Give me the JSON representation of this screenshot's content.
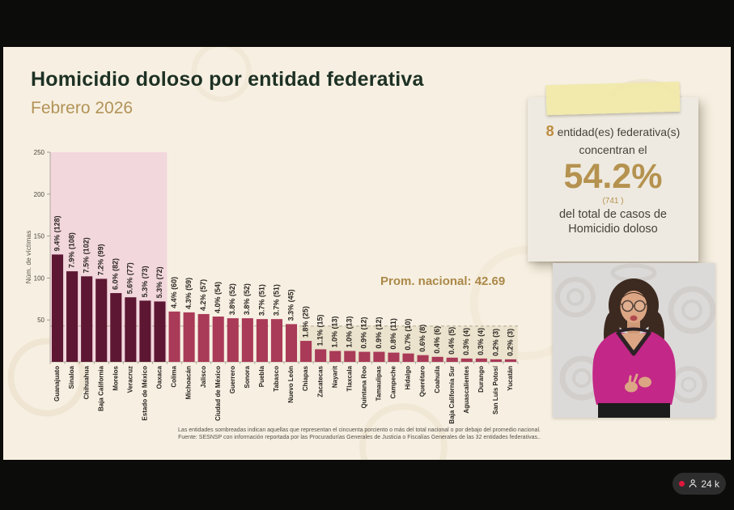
{
  "slide": {
    "title": "Homicidio doloso por entidad federativa",
    "subtitle": "Febrero 2026",
    "average_label": "Prom. nacional: 42.69",
    "footer_line1": "Las entidades sombreadas indican aquellas que representan el cincuenta porciento o más del total nacional o por debajo del promedio nacional.",
    "footer_line2": "Fuente: SESNSP con información reportada por las Procuradurías Generales de Justicia o Fiscalías Generales de las 32 entidades federativas..",
    "callout": {
      "count": "8",
      "line1_rest": " entidad(es) federativa(s)",
      "line2": "concentran el",
      "percent": "54.2%",
      "cases": "(741 )",
      "line3": "del total de casos de",
      "line4": "Homicidio doloso"
    }
  },
  "viewer_badge": {
    "count": "24 k"
  },
  "chart_data": {
    "type": "bar",
    "title": "Homicidio doloso por entidad federativa — Febrero 2026",
    "xlabel": "",
    "ylabel": "Núm. de víctimas",
    "ylim": [
      0,
      250
    ],
    "yticks": [
      50,
      100,
      150,
      200,
      250
    ],
    "grid": false,
    "national_average": 42.69,
    "national_average_label": "Prom. nacional: 42.69",
    "shaded_top_entities": 8,
    "below_average_from_index": 17,
    "categories": [
      "Guanajuato",
      "Sinaloa",
      "Chihuahua",
      "Baja California",
      "Morelos",
      "Veracruz",
      "Estado de México",
      "Oaxaca",
      "Colima",
      "Michoacán",
      "Jalisco",
      "Ciudad de México",
      "Guerrero",
      "Sonora",
      "Puebla",
      "Tabasco",
      "Nuevo León",
      "Chiapas",
      "Zacatecas",
      "Nayarit",
      "Tlaxcala",
      "Quintana Roo",
      "Tamaulipas",
      "Campeche",
      "Hidalgo",
      "Querétaro",
      "Coahuila",
      "Baja California Sur",
      "Aguascalientes",
      "Durango",
      "San Luis Potosí",
      "Yucatán"
    ],
    "values": [
      128,
      108,
      102,
      99,
      82,
      77,
      73,
      72,
      60,
      59,
      57,
      54,
      52,
      52,
      51,
      51,
      45,
      25,
      15,
      13,
      13,
      12,
      12,
      11,
      10,
      8,
      6,
      5,
      4,
      4,
      3,
      3
    ],
    "percent_labels": [
      "9.4%",
      "7.9%",
      "7.5%",
      "7.2%",
      "6.0%",
      "5.6%",
      "5.3%",
      "5.3%",
      "4.4%",
      "4.3%",
      "4.2%",
      "4.0%",
      "3.8%",
      "3.8%",
      "3.7%",
      "3.7%",
      "3.3%",
      "1.8%",
      "1.1%",
      "1.0%",
      "1.0%",
      "0.9%",
      "0.9%",
      "0.8%",
      "0.7%",
      "0.6%",
      "0.4%",
      "0.4%",
      "0.3%",
      "0.3%",
      "0.2%",
      "0.2%"
    ],
    "legend": "sombreado rosa = entidades que concentran 50% o más del total; sombreado beige = por debajo del promedio nacional",
    "colors": {
      "bar_top_share": "#5d1732",
      "bar_regular": "#a93a58",
      "band_top_share": "#f2d7dd",
      "band_below_avg": "#ebe3cd",
      "avg_line": "#a89f86",
      "accent_gold": "#ab8848",
      "title_green": "#1d3124",
      "label_dark": "#2a2522"
    }
  }
}
